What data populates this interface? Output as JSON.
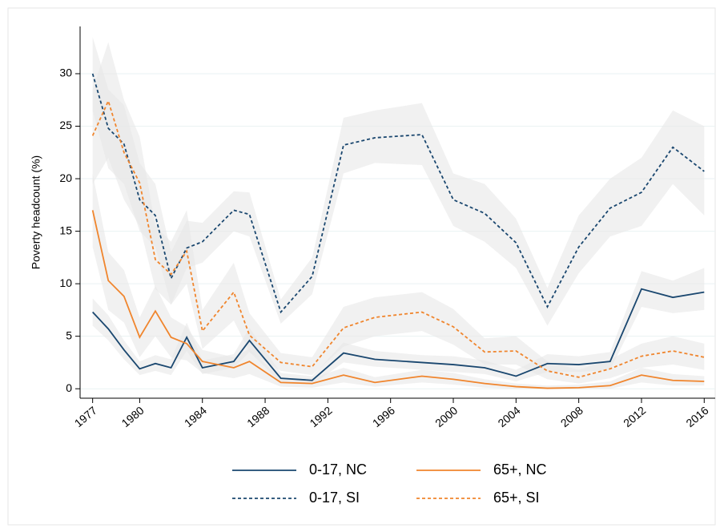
{
  "chart_data": {
    "type": "line",
    "y_label": "Poverty headcount (%)",
    "x": [
      1977,
      1978,
      1979,
      1980,
      1981,
      1982,
      1983,
      1984,
      1986,
      1987,
      1989,
      1991,
      1993,
      1995,
      1998,
      2000,
      2002,
      2004,
      2006,
      2008,
      2010,
      2012,
      2014,
      2016
    ],
    "xlim": [
      1976.2,
      2016.7
    ],
    "xticks": [
      1977,
      1980,
      1984,
      1988,
      1992,
      1996,
      2000,
      2004,
      2008,
      2012,
      2016
    ],
    "ylim": [
      -0.9,
      34.5
    ],
    "yticks": [
      0,
      5,
      10,
      15,
      20,
      25,
      30
    ],
    "grid": true,
    "band_color": "#e8e8e8",
    "series": [
      {
        "name": "0-17, NC",
        "color": "#1a476f",
        "dash": false,
        "values": [
          7.3,
          5.7,
          3.7,
          1.9,
          2.4,
          2.0,
          4.9,
          2.0,
          2.6,
          4.6,
          1.0,
          0.8,
          3.4,
          2.8,
          2.5,
          2.3,
          2.0,
          1.2,
          2.4,
          2.3,
          2.6,
          9.5,
          8.7,
          9.2
        ],
        "ci_lower": [
          6,
          4.6,
          2.8,
          1.3,
          1.7,
          1.3,
          3.6,
          1.4,
          2,
          3.5,
          0.6,
          0.4,
          2.5,
          2.1,
          1.8,
          1.6,
          1.4,
          0.7,
          1.6,
          1.6,
          1.8,
          7.8,
          7.2,
          7.5
        ],
        "ci_upper": [
          8.6,
          7,
          4.6,
          2.6,
          3.2,
          2.8,
          6.3,
          2.7,
          3.3,
          5.8,
          1.5,
          1.2,
          4.4,
          3.6,
          3.2,
          3.1,
          2.7,
          1.8,
          3.3,
          3.1,
          3.5,
          11.2,
          10.3,
          11.5
        ]
      },
      {
        "name": "65+, NC",
        "color": "#f0852d",
        "dash": false,
        "values": [
          17.0,
          10.3,
          8.8,
          4.9,
          7.4,
          4.9,
          4.3,
          2.6,
          2.0,
          2.6,
          0.6,
          0.5,
          1.3,
          0.6,
          1.2,
          0.9,
          0.5,
          0.2,
          0.05,
          0.1,
          0.3,
          1.3,
          0.8,
          0.7
        ],
        "ci_lower": [
          13.5,
          7.5,
          6.3,
          3,
          5,
          3,
          2.7,
          1.5,
          1,
          1.4,
          0.2,
          0.1,
          0.6,
          0.2,
          0.6,
          0.4,
          0.1,
          0,
          0,
          0,
          0,
          0.6,
          0.3,
          0.3
        ],
        "ci_upper": [
          20.5,
          13,
          11.3,
          6.8,
          9.8,
          6.8,
          5.9,
          3.7,
          3,
          3.8,
          1,
          1,
          2,
          1.1,
          1.8,
          1.5,
          0.9,
          0.5,
          0.3,
          0.4,
          0.7,
          2,
          1.4,
          1.2
        ]
      },
      {
        "name": "0-17, SI",
        "color": "#1a476f",
        "dash": true,
        "values": [
          30.0,
          24.8,
          23.3,
          18.0,
          16.5,
          10.5,
          13.4,
          14.0,
          17.0,
          16.6,
          7.3,
          10.7,
          23.2,
          23.9,
          24.2,
          18.0,
          16.7,
          13.9,
          7.8,
          13.5,
          17.2,
          18.7,
          23.0,
          20.7
        ],
        "ci_lower": [
          26.5,
          21,
          19.5,
          15,
          13.5,
          8,
          11.5,
          12,
          15,
          14.5,
          6.2,
          9,
          20.5,
          21.5,
          21.3,
          15.5,
          14,
          11.5,
          6,
          11,
          14.5,
          15.5,
          19.5,
          16.5
        ],
        "ci_upper": [
          33.5,
          28.5,
          27,
          21.5,
          19.5,
          13,
          16,
          15.8,
          18.8,
          18.7,
          8.5,
          12.5,
          25.8,
          26.5,
          27.2,
          20.5,
          19.5,
          16.2,
          9.6,
          16.5,
          20,
          22,
          26.5,
          25
        ]
      },
      {
        "name": "65+, SI",
        "color": "#f0852d",
        "dash": true,
        "values": [
          24.1,
          27.4,
          22.5,
          19.6,
          12.3,
          10.9,
          13.1,
          5.5,
          9.2,
          5.1,
          2.5,
          2.1,
          5.8,
          6.8,
          7.3,
          5.9,
          3.5,
          3.6,
          1.7,
          1.1,
          1.9,
          3.1,
          3.6,
          3.0
        ],
        "ci_lower": [
          19.5,
          22,
          18,
          15.5,
          9.5,
          8,
          10,
          3.8,
          6.5,
          3.5,
          1.7,
          1.3,
          4,
          5,
          5.5,
          4.2,
          2.3,
          2.3,
          0.9,
          0.5,
          1,
          2,
          2.3,
          1.8
        ],
        "ci_upper": [
          28.5,
          33,
          27.5,
          24,
          15.5,
          14,
          17,
          7.5,
          12,
          7.2,
          3.4,
          3,
          7.8,
          8.7,
          9.2,
          7.6,
          4.8,
          5,
          2.6,
          1.8,
          2.8,
          4.3,
          5,
          4.3
        ]
      }
    ]
  }
}
